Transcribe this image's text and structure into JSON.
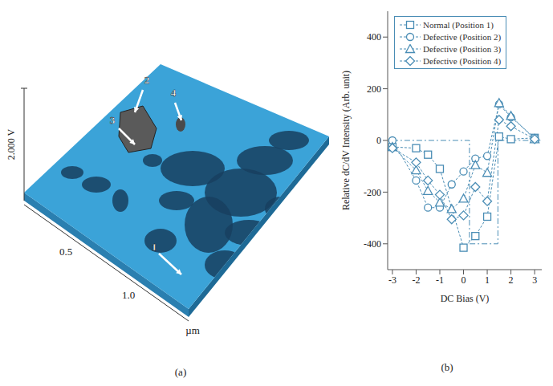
{
  "image_panel": {
    "z_scale": "2.000 V",
    "axis_ticks": [
      "0.5",
      "1.0"
    ],
    "axis_unit": "µm",
    "markers": [
      "1",
      "2",
      "3",
      "4"
    ]
  },
  "panel_labels": [
    "(a)",
    "(b)"
  ],
  "chart_data": {
    "type": "line",
    "x_label": "DC Bias (V)",
    "y_label": "Relative dC/dV Intensity (Arb. unit)",
    "xlim": [
      -3.2,
      3.3
    ],
    "xticks": [
      -3,
      -2,
      -1,
      0,
      1,
      2,
      3
    ],
    "ylim": [
      -500,
      500
    ],
    "yticks": [
      -400,
      -200,
      0,
      200,
      400
    ],
    "grid": false,
    "legend": "upper left",
    "line_style": "dashed",
    "series": [
      {
        "name": "Normal (Position 1)",
        "color": "#4a8db5",
        "marker": "square",
        "x": [
          -3,
          -2,
          -1.5,
          -1,
          0,
          0.5,
          1,
          1.5,
          2,
          3
        ],
        "values": [
          -25,
          -30,
          -55,
          -110,
          -415,
          -370,
          -295,
          15,
          5,
          10
        ]
      },
      {
        "name": "Defective (Position 2)",
        "color": "#4a8db5",
        "marker": "circle",
        "x": [
          -3,
          -2,
          -1.5,
          -1,
          -0.5,
          0,
          0.5,
          1,
          1.5,
          2,
          3
        ],
        "values": [
          0,
          -155,
          -260,
          -260,
          -170,
          -120,
          -70,
          -60,
          140,
          90,
          10
        ]
      },
      {
        "name": "Defective (Position 3)",
        "color": "#4a8db5",
        "marker": "triangle",
        "x": [
          -3,
          -2,
          -1.5,
          -1,
          -0.5,
          0,
          0.5,
          1,
          1.5,
          2,
          3
        ],
        "values": [
          -25,
          -115,
          -195,
          -240,
          -265,
          -225,
          -95,
          -125,
          145,
          95,
          5
        ]
      },
      {
        "name": "Defective (Position 4)",
        "color": "#4a8db5",
        "marker": "diamond",
        "x": [
          -3,
          -2,
          -1.5,
          -1,
          -0.5,
          0,
          0.5,
          1,
          1.5,
          2,
          3
        ],
        "values": [
          -30,
          -85,
          -155,
          -210,
          -305,
          -290,
          -180,
          -235,
          80,
          55,
          5
        ]
      }
    ],
    "guide": {
      "color": "#4a8db5",
      "line_style": "dashdot",
      "x": [
        -3,
        0.25,
        0.25,
        1.45,
        1.45,
        3.3
      ],
      "values": [
        0,
        0,
        -400,
        -400,
        0,
        0
      ]
    }
  }
}
